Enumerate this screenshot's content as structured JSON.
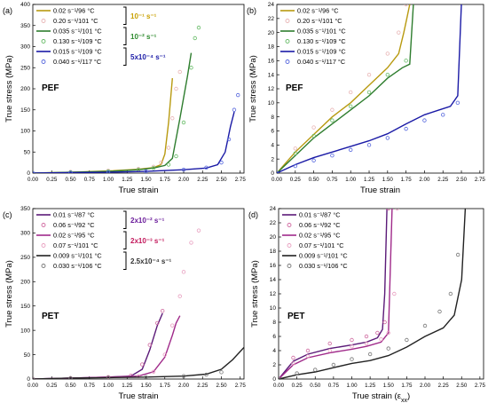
{
  "chart_data": [
    {
      "panel": "(a)",
      "type": "line",
      "material": "PEF",
      "xlabel": "True strain",
      "ylabel": "True stress (MPa)",
      "xlim": [
        0,
        2.8
      ],
      "ylim": [
        0,
        400
      ],
      "xticks": [
        "0.00",
        "0.25",
        "0.50",
        "0.75",
        "1.00",
        "1.25",
        "1.50",
        "1.75",
        "2.00",
        "2.25",
        "2.50",
        "2.75"
      ],
      "yticks": [
        "0",
        "50",
        "100",
        "150",
        "200",
        "250",
        "300",
        "350",
        "400"
      ],
      "legend": "top-left",
      "groups": [
        {
          "label": "10⁻¹ s⁻¹",
          "color": "#c8a000"
        },
        {
          "label": "10⁻² s⁻¹",
          "color": "#2e8b2e"
        },
        {
          "label": "5x10⁻⁴ s⁻¹",
          "color": "#1a1aa6"
        }
      ],
      "series": [
        {
          "name": "0.02 s⁻¹/96 °C",
          "color": "#b89a10",
          "style": "line",
          "x": [
            0,
            0.5,
            1.0,
            1.4,
            1.6,
            1.7,
            1.75,
            1.8,
            1.85
          ],
          "y": [
            0,
            2,
            5,
            9,
            13,
            20,
            45,
            120,
            225
          ]
        },
        {
          "name": "0.20 s⁻¹/101 °C",
          "color": "#e8b4b4",
          "style": "marker",
          "x": [
            0,
            0.5,
            1.0,
            1.4,
            1.6,
            1.7,
            1.8,
            1.85,
            1.9,
            1.95
          ],
          "y": [
            0,
            3,
            6,
            10,
            15,
            25,
            60,
            130,
            200,
            240
          ]
        },
        {
          "name": "0.035 s⁻¹/101 °C",
          "color": "#2e7d2e",
          "style": "line",
          "x": [
            0,
            0.5,
            1.0,
            1.4,
            1.6,
            1.75,
            1.85,
            1.95,
            2.05,
            2.1
          ],
          "y": [
            0,
            2,
            4,
            8,
            12,
            18,
            35,
            130,
            230,
            285
          ]
        },
        {
          "name": "0.130 s⁻¹/109 °C",
          "color": "#66bb66",
          "style": "marker",
          "x": [
            0,
            0.5,
            1.0,
            1.4,
            1.6,
            1.8,
            1.9,
            2.0,
            2.1,
            2.15,
            2.2
          ],
          "y": [
            0,
            2,
            4,
            8,
            12,
            20,
            40,
            120,
            250,
            320,
            345
          ]
        },
        {
          "name": "0.015 s⁻¹/109 °C",
          "color": "#1a1aa6",
          "style": "line",
          "x": [
            0,
            0.5,
            1.0,
            1.5,
            2.0,
            2.3,
            2.45,
            2.55,
            2.62,
            2.67
          ],
          "y": [
            0,
            1,
            2,
            4,
            8,
            12,
            20,
            50,
            110,
            145
          ]
        },
        {
          "name": "0.040 s⁻¹/117 °C",
          "color": "#5566dd",
          "style": "marker",
          "x": [
            0,
            0.5,
            1.0,
            1.5,
            2.0,
            2.3,
            2.5,
            2.6,
            2.67,
            2.72
          ],
          "y": [
            0,
            1,
            2,
            4,
            8,
            13,
            25,
            80,
            150,
            185
          ]
        }
      ]
    },
    {
      "panel": "(b)",
      "type": "line",
      "material": "PEF",
      "xlabel": "True strain",
      "ylabel": "True stress (MPa)",
      "xlim": [
        0,
        2.8
      ],
      "ylim": [
        0,
        24
      ],
      "xticks": [
        "0.00",
        "0.25",
        "0.50",
        "0.75",
        "1.00",
        "1.25",
        "1.50",
        "1.75",
        "2.00",
        "2.25",
        "2.50",
        "2.75"
      ],
      "yticks": [
        "0",
        "2",
        "4",
        "6",
        "8",
        "10",
        "12",
        "14",
        "16",
        "18",
        "20",
        "22",
        "24"
      ],
      "legend": "top-left",
      "series": [
        {
          "name": "0.02 s⁻¹/96 °C",
          "color": "#b89a10",
          "style": "line",
          "x": [
            0,
            0.25,
            0.5,
            0.75,
            1.0,
            1.25,
            1.5,
            1.65,
            1.72,
            1.76,
            1.8
          ],
          "y": [
            0,
            3,
            5.5,
            8,
            10,
            12.5,
            15,
            17,
            20,
            22,
            24
          ]
        },
        {
          "name": "0.20 s⁻¹/101 °C",
          "color": "#e8b4b4",
          "style": "marker",
          "x": [
            0,
            0.25,
            0.5,
            0.75,
            1.0,
            1.25,
            1.5,
            1.65,
            1.75
          ],
          "y": [
            0,
            3.5,
            6.5,
            9,
            11.5,
            14,
            17,
            20,
            24
          ]
        },
        {
          "name": "0.035 s⁻¹/101 °C",
          "color": "#2e7d2e",
          "style": "line",
          "x": [
            0,
            0.25,
            0.5,
            0.75,
            1.0,
            1.25,
            1.5,
            1.7,
            1.8,
            1.85
          ],
          "y": [
            0,
            2.5,
            5,
            7,
            9,
            11,
            13.5,
            15,
            15.5,
            24
          ]
        },
        {
          "name": "0.130 s⁻¹/109 °C",
          "color": "#66bb66",
          "style": "marker",
          "x": [
            0,
            0.25,
            0.5,
            0.75,
            1.0,
            1.25,
            1.5,
            1.75
          ],
          "y": [
            0,
            2.8,
            5.3,
            7.5,
            9.5,
            11.5,
            14,
            16
          ]
        },
        {
          "name": "0.015 s⁻¹/109 °C",
          "color": "#1a1aa6",
          "style": "line",
          "x": [
            0,
            0.25,
            0.5,
            0.75,
            1.0,
            1.25,
            1.5,
            1.75,
            2.0,
            2.2,
            2.35,
            2.45,
            2.5
          ],
          "y": [
            0,
            1.2,
            2.2,
            3,
            3.8,
            4.6,
            5.6,
            7,
            8.3,
            9,
            9.5,
            11,
            24
          ]
        },
        {
          "name": "0.040 s⁻¹/117 °C",
          "color": "#5566dd",
          "style": "marker",
          "x": [
            0,
            0.25,
            0.5,
            0.75,
            1.0,
            1.25,
            1.5,
            1.75,
            2.0,
            2.25,
            2.45
          ],
          "y": [
            0,
            1,
            1.8,
            2.5,
            3.3,
            4,
            5,
            6.3,
            7.5,
            8.3,
            10
          ]
        }
      ]
    },
    {
      "panel": "(c)",
      "type": "line",
      "material": "PET",
      "xlabel": "True strain",
      "ylabel": "True stress (MPa)",
      "xlim": [
        0,
        2.8
      ],
      "ylim": [
        0,
        350
      ],
      "xticks": [
        "0.00",
        "0.25",
        "0.50",
        "0.75",
        "1.00",
        "1.25",
        "1.50",
        "1.75",
        "2.00",
        "2.25",
        "2.50",
        "2.75"
      ],
      "yticks": [
        "0",
        "50",
        "100",
        "150",
        "200",
        "250",
        "300",
        "350"
      ],
      "legend": "top-left",
      "groups": [
        {
          "label": "2x10⁻² s⁻¹",
          "color": "#6a1b9a"
        },
        {
          "label": "2x10⁻³ s⁻¹",
          "color": "#c2185b"
        },
        {
          "label": "2.5x10⁻⁴ s⁻¹",
          "color": "#333333"
        }
      ],
      "series": [
        {
          "name": "0.01 s⁻¹/87 °C",
          "color": "#5b1a78",
          "style": "line",
          "x": [
            0,
            0.5,
            1.0,
            1.3,
            1.45,
            1.55,
            1.65,
            1.72
          ],
          "y": [
            0,
            2,
            4,
            6,
            20,
            60,
            110,
            135
          ]
        },
        {
          "name": "0.06 s⁻¹/92 °C",
          "color": "#d06aa0",
          "style": "marker",
          "x": [
            0,
            0.5,
            1.0,
            1.3,
            1.45,
            1.55,
            1.65,
            1.72
          ],
          "y": [
            0,
            2,
            4,
            7,
            30,
            70,
            115,
            140
          ]
        },
        {
          "name": "0.02 s⁻¹/95 °C",
          "color": "#a02a8a",
          "style": "line",
          "x": [
            0,
            0.5,
            1.0,
            1.4,
            1.6,
            1.75,
            1.85,
            1.9,
            1.95
          ],
          "y": [
            0,
            2,
            4,
            6,
            15,
            45,
            90,
            115,
            130
          ]
        },
        {
          "name": "0.07 s⁻¹/101 °C",
          "color": "#e8a0c0",
          "style": "marker",
          "x": [
            0,
            0.5,
            1.0,
            1.4,
            1.6,
            1.75,
            1.85,
            1.95,
            2.0,
            2.1,
            2.2
          ],
          "y": [
            0,
            2,
            4,
            6,
            15,
            50,
            110,
            170,
            220,
            280,
            305
          ]
        },
        {
          "name": "0.009 s⁻¹/101 °C",
          "color": "#222222",
          "style": "line",
          "x": [
            0,
            0.5,
            1.0,
            1.5,
            2.0,
            2.3,
            2.5,
            2.65,
            2.8
          ],
          "y": [
            0,
            2,
            3,
            4,
            6,
            10,
            20,
            40,
            65
          ]
        },
        {
          "name": "0.030 s⁻¹/106 °C",
          "color": "#777777",
          "style": "marker",
          "x": [
            0,
            0.5,
            1.0,
            1.5,
            2.0,
            2.3,
            2.5
          ],
          "y": [
            0,
            2,
            3,
            4,
            6,
            9,
            14
          ]
        }
      ]
    },
    {
      "panel": "(d)",
      "type": "line",
      "material": "PET",
      "xlabel": "True strain (ε",
      "xlabel_sub": "xx",
      "xlabel_tail": ")",
      "ylabel": "True stress (MPa)",
      "xlim": [
        0,
        2.8
      ],
      "ylim": [
        0,
        24
      ],
      "xticks": [
        "0.00",
        "0.25",
        "0.50",
        "0.75",
        "1.00",
        "1.25",
        "1.50",
        "1.75",
        "2.00",
        "2.25",
        "2.50",
        "2.75"
      ],
      "yticks": [
        "0",
        "2",
        "4",
        "6",
        "8",
        "10",
        "12",
        "14",
        "16",
        "18",
        "20",
        "22",
        "24"
      ],
      "legend": "top-left",
      "series": [
        {
          "name": "0.01 s⁻¹/87 °C",
          "color": "#5b1a78",
          "style": "line",
          "x": [
            0,
            0.2,
            0.4,
            0.7,
            1.0,
            1.2,
            1.35,
            1.42,
            1.45,
            1.48
          ],
          "y": [
            0,
            2.5,
            3.5,
            4.3,
            4.8,
            5.2,
            5.8,
            7,
            12,
            24
          ]
        },
        {
          "name": "0.06 s⁻¹/92 °C",
          "color": "#d06aa0",
          "style": "marker",
          "x": [
            0,
            0.2,
            0.4,
            0.7,
            1.0,
            1.2,
            1.35,
            1.45,
            1.5
          ],
          "y": [
            0,
            3,
            4,
            5,
            5.5,
            6,
            6.5,
            8,
            24
          ]
        },
        {
          "name": "0.02 s⁻¹/95 °C",
          "color": "#a02a8a",
          "style": "line",
          "x": [
            0,
            0.2,
            0.4,
            0.7,
            1.0,
            1.2,
            1.4,
            1.5,
            1.55
          ],
          "y": [
            0,
            2,
            3,
            3.7,
            4.2,
            4.6,
            5.2,
            6.5,
            24
          ]
        },
        {
          "name": "0.07 s⁻¹/101 °C",
          "color": "#e8a0c0",
          "style": "marker",
          "x": [
            0,
            0.2,
            0.4,
            0.7,
            1.0,
            1.2,
            1.4,
            1.5,
            1.58,
            1.62
          ],
          "y": [
            0,
            2.2,
            3.2,
            4,
            4.6,
            5,
            5.6,
            6.5,
            12,
            24
          ]
        },
        {
          "name": "0.009 s⁻¹/101 °C",
          "color": "#222222",
          "style": "line",
          "x": [
            0,
            0.25,
            0.5,
            0.75,
            1.0,
            1.25,
            1.5,
            1.75,
            2.0,
            2.25,
            2.4,
            2.5,
            2.55
          ],
          "y": [
            0,
            0.6,
            1,
            1.6,
            2.2,
            2.6,
            3.3,
            4.5,
            6,
            7.2,
            9,
            14,
            24
          ]
        },
        {
          "name": "0.030 s⁻¹/106 °C",
          "color": "#777777",
          "style": "marker",
          "x": [
            0,
            0.25,
            0.5,
            0.75,
            1.0,
            1.25,
            1.5,
            1.75,
            2.0,
            2.2,
            2.35,
            2.45
          ],
          "y": [
            0,
            0.8,
            1.3,
            2,
            2.8,
            3.5,
            4.3,
            5.5,
            7.5,
            9.5,
            12,
            17.5
          ]
        }
      ]
    }
  ]
}
